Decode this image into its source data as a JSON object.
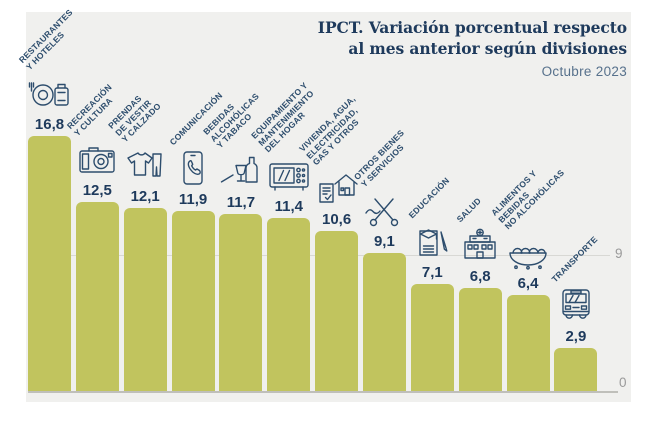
{
  "header": {
    "title_line1": "IPCT. Variación porcentual respecto",
    "title_line2": "al mes anterior según divisiones",
    "subtitle": "Octubre 2023"
  },
  "axis": {
    "upper_tick": "9",
    "zero_tick": "0"
  },
  "colors": {
    "bar": "#c1c45e",
    "panel_bg": "#f0f0ee",
    "title_navy": "#1e3a5c",
    "label_navy": "#2d4d6d",
    "axis_gray": "#9a9a9a"
  },
  "chart_data": {
    "type": "bar",
    "title": "IPCT. Variación porcentual respecto al mes anterior según divisiones",
    "subtitle": "Octubre 2023",
    "xlabel": "",
    "ylabel": "",
    "ylim": [
      0,
      18
    ],
    "gridlines": [
      0,
      9
    ],
    "legend": null,
    "categories": [
      "Restaurantes y hoteles",
      "Recreación y cultura",
      "Prendas de vestir y calzado",
      "Comunicación",
      "Bebidas alcohólicas y tabaco",
      "Equipamiento y mantenimiento del hogar",
      "Vivienda, agua, electricidad, gas y otros",
      "Otros bienes y servicios",
      "Educación",
      "Salud",
      "Alimentos y bebidas no alcohólicas",
      "Transporte"
    ],
    "values": [
      16.8,
      12.5,
      12.1,
      11.9,
      11.7,
      11.4,
      10.6,
      9.1,
      7.1,
      6.8,
      6.4,
      2.9
    ],
    "bars": [
      {
        "label_lines": [
          "RESTAURANTES",
          "Y HOTELES"
        ],
        "value": 16.8,
        "value_label": "16,8",
        "icon": "restaurants-hotels-icon"
      },
      {
        "label_lines": [
          "RECREACIÓN",
          "Y CULTURA"
        ],
        "value": 12.5,
        "value_label": "12,5",
        "icon": "recreation-culture-icon"
      },
      {
        "label_lines": [
          "PRENDAS",
          "DE VESTIR",
          "Y CALZADO"
        ],
        "value": 12.1,
        "value_label": "12,1",
        "icon": "clothing-footwear-icon"
      },
      {
        "label_lines": [
          "COMUNICACIÓN"
        ],
        "value": 11.9,
        "value_label": "11,9",
        "icon": "communication-icon"
      },
      {
        "label_lines": [
          "BEBIDAS",
          "ALCOHÓLICAS",
          "Y TABACO"
        ],
        "value": 11.7,
        "value_label": "11,7",
        "icon": "alcoholic-beverages-tobacco-icon"
      },
      {
        "label_lines": [
          "EQUIPAMIENTO Y",
          "MANTENIMIENTO",
          "DEL HOGAR"
        ],
        "value": 11.4,
        "value_label": "11,4",
        "icon": "home-equipment-icon"
      },
      {
        "label_lines": [
          "VIVIENDA, AGUA,",
          "ELECTRICIDAD,",
          "GAS Y OTROS"
        ],
        "value": 10.6,
        "value_label": "10,6",
        "icon": "housing-utilities-icon"
      },
      {
        "label_lines": [
          "OTROS BIENES",
          "Y SERVICIOS"
        ],
        "value": 9.1,
        "value_label": "9,1",
        "icon": "other-goods-services-icon"
      },
      {
        "label_lines": [
          "EDUCACIÓN"
        ],
        "value": 7.1,
        "value_label": "7,1",
        "icon": "education-icon"
      },
      {
        "label_lines": [
          "SALUD"
        ],
        "value": 6.8,
        "value_label": "6,8",
        "icon": "health-icon"
      },
      {
        "label_lines": [
          "ALIMENTOS Y",
          "BEBIDAS",
          "NO ALCOHÓLICAS"
        ],
        "value": 6.4,
        "value_label": "6,4",
        "icon": "food-beverages-icon"
      },
      {
        "label_lines": [
          "TRANSPORTE"
        ],
        "value": 2.9,
        "value_label": "2,9",
        "icon": "transport-icon"
      }
    ]
  }
}
